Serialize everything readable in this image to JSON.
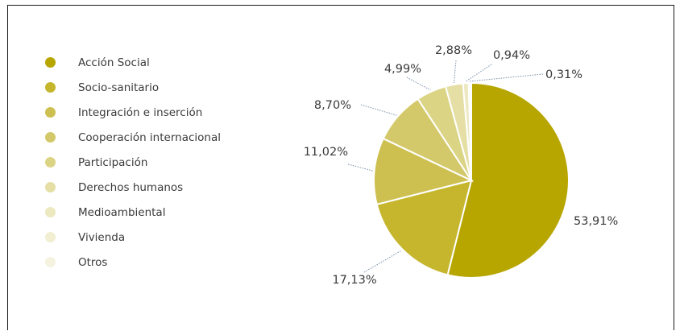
{
  "chart_data": {
    "type": "pie",
    "title": "",
    "categories": [
      "Acción Social",
      "Socio-sanitario",
      "Integración e inserción",
      "Cooperación internacional",
      "Participación",
      "Derechos humanos",
      "Medioambiental",
      "Vivienda",
      "Otros"
    ],
    "values": [
      53.91,
      17.13,
      11.02,
      8.7,
      4.99,
      2.88,
      0.94,
      0.31,
      0.12
    ],
    "value_labels": [
      "53,91%",
      "17,13%",
      "11,02%",
      "8,70%",
      "4,99%",
      "2,88%",
      "0,94%",
      "0,31%",
      ""
    ],
    "colors": [
      "#b7a600",
      "#c5b62e",
      "#cdc050",
      "#d4c96a",
      "#dcd485",
      "#e5dfa6",
      "#ece8c0",
      "#f1eed2",
      "#f5f3e0"
    ],
    "legend_position": "left"
  }
}
